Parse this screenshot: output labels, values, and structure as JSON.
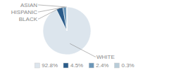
{
  "chart_data": {
    "type": "pie",
    "categories": [
      "WHITE",
      "BLACK",
      "HISPANIC",
      "ASIAN"
    ],
    "values": [
      92.8,
      4.5,
      2.4,
      0.3
    ],
    "value_labels": [
      "92.8%",
      "4.5%",
      "2.4%",
      "0.3%"
    ],
    "colors": [
      "#dce5ed",
      "#2b5c8a",
      "#6b96b8",
      "#b8ccd8"
    ],
    "legend": "bottom"
  }
}
